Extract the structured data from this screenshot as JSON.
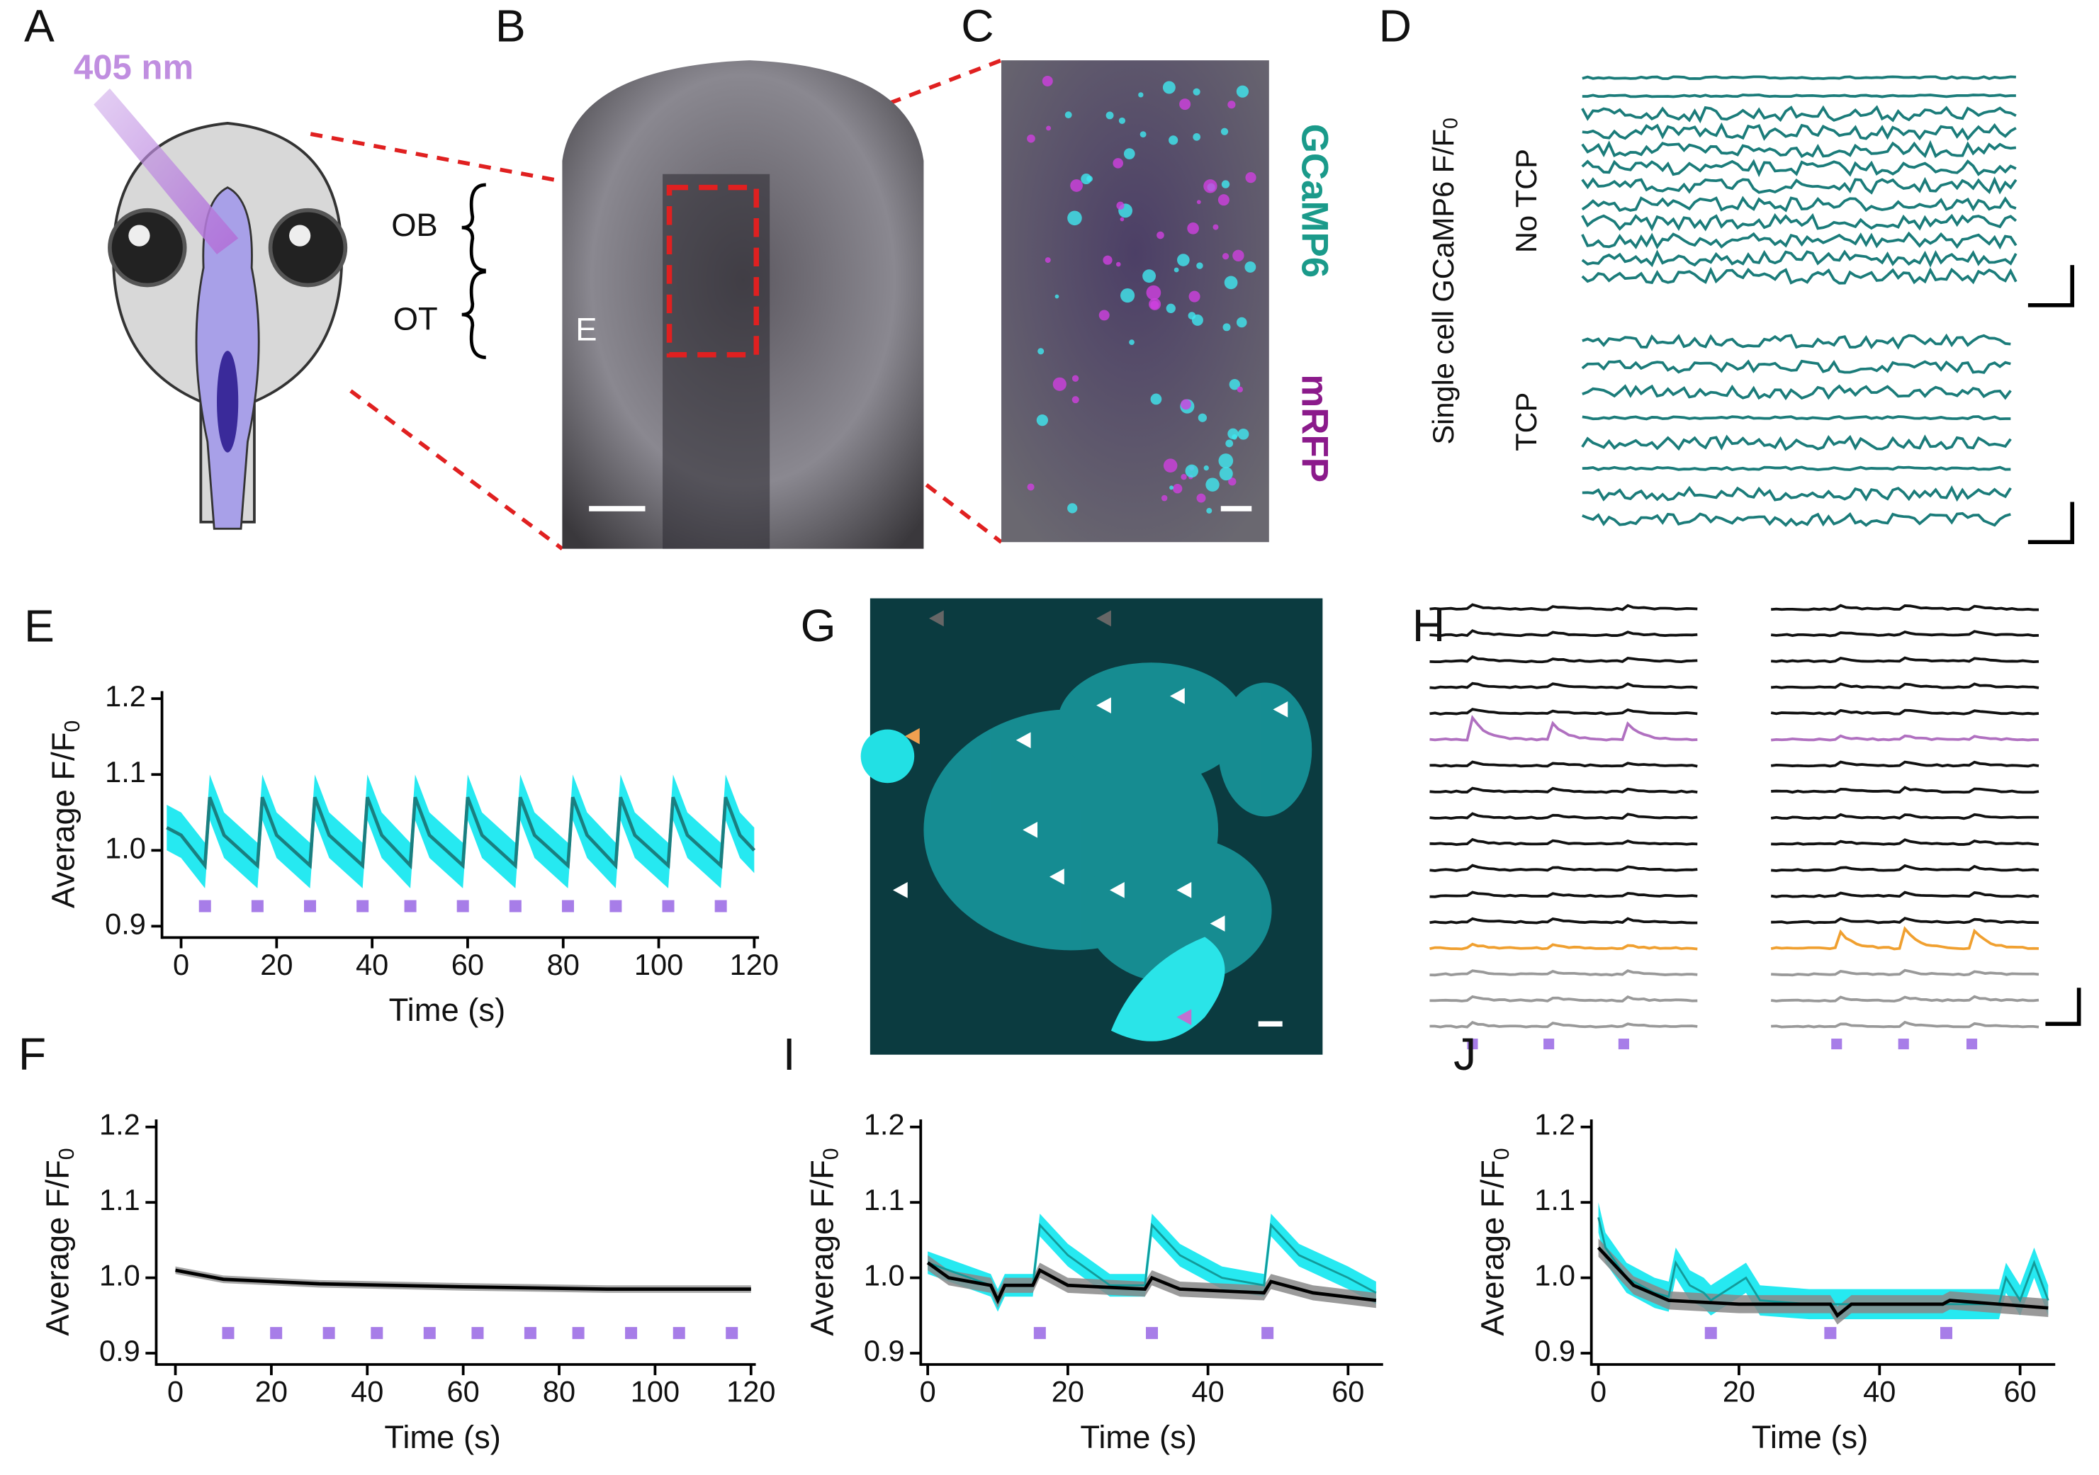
{
  "texts": {
    "panel_labels": [
      "A",
      "B",
      "C",
      "D",
      "G",
      "H"
    ],
    "a_wavelength": "405 nm",
    "b_labels": [
      "OB",
      "OT",
      "E"
    ],
    "c_labels": [
      "GCaMP6",
      "mRFP"
    ],
    "d_ylabel": "Single cell GCaMP6 F/F",
    "d_ylabel_sub": "0",
    "d_groups": [
      "No TCP",
      "TCP"
    ]
  },
  "chart_data": [
    {
      "type": "line",
      "panel": "E",
      "xlabel": "Time (s)",
      "ylabel": "Average F/F",
      "ylabel_sub": "0",
      "xlim": [
        -4,
        121
      ],
      "ylim": [
        0.885,
        1.21
      ],
      "xticks": [
        0,
        20,
        40,
        60,
        80,
        100,
        120
      ],
      "yticks": [
        0.9,
        {
          "value": 1,
          "label": "1.0"
        },
        1.1,
        1.2
      ],
      "stimuli": [
        5,
        16,
        27,
        38,
        48,
        59,
        70,
        81,
        91,
        102,
        113
      ],
      "stimulus_color": "#a77de8",
      "series": [
        {
          "color": "#1a7f80",
          "band_color": "#00e5ee",
          "error": 0.03,
          "x": [
            -3,
            0,
            5,
            6,
            9,
            16,
            17,
            20,
            27,
            28,
            31,
            38,
            39,
            42,
            48,
            49,
            52,
            59,
            60,
            63,
            70,
            71,
            74,
            81,
            82,
            85,
            91,
            92,
            95,
            102,
            103,
            106,
            113,
            114,
            117,
            120
          ],
          "values": [
            1.03,
            1.02,
            0.98,
            1.07,
            1.02,
            0.98,
            1.07,
            1.02,
            0.98,
            1.07,
            1.02,
            0.98,
            1.07,
            1.02,
            0.98,
            1.07,
            1.02,
            0.98,
            1.07,
            1.02,
            0.98,
            1.07,
            1.02,
            0.98,
            1.07,
            1.02,
            0.98,
            1.07,
            1.02,
            0.98,
            1.07,
            1.02,
            0.98,
            1.07,
            1.02,
            1.0
          ]
        }
      ]
    },
    {
      "type": "line",
      "panel": "F",
      "xlabel": "Time (s)",
      "ylabel": "Average F/F",
      "ylabel_sub": "0",
      "xlim": [
        -4,
        121
      ],
      "ylim": [
        0.885,
        1.21
      ],
      "xticks": [
        0,
        20,
        40,
        60,
        80,
        100,
        120
      ],
      "yticks": [
        0.9,
        {
          "value": 1,
          "label": "1.0"
        },
        1.1,
        1.2
      ],
      "stimuli": [
        11,
        21,
        32,
        42,
        53,
        63,
        74,
        84,
        95,
        105,
        116
      ],
      "stimulus_color": "#a77de8",
      "series": [
        {
          "color": "#000000",
          "band_color": "#999999",
          "error": 0.005,
          "x": [
            0,
            10,
            30,
            60,
            90,
            120
          ],
          "values": [
            1.01,
            0.998,
            0.992,
            0.988,
            0.985,
            0.985
          ]
        }
      ]
    },
    {
      "type": "line",
      "panel": "I",
      "xlabel": "Time (s)",
      "ylabel": "Average F/F",
      "ylabel_sub": "0",
      "xlim": [
        -1,
        65
      ],
      "ylim": [
        0.885,
        1.21
      ],
      "xticks": [
        0,
        20,
        40,
        60
      ],
      "yticks": [
        0.9,
        {
          "value": 1,
          "label": "1.0"
        },
        1.1,
        1.2
      ],
      "stimuli": [
        16,
        32,
        48.5
      ],
      "stimulus_color": "#a77de8",
      "series": [
        {
          "color": "#139a9a",
          "band_color": "#00e5ee",
          "error": 0.015,
          "x": [
            0,
            9,
            10,
            11,
            15,
            16,
            20,
            26,
            31,
            32,
            36,
            42,
            48,
            49,
            53,
            60,
            64
          ],
          "values": [
            1.02,
            0.99,
            0.97,
            0.99,
            0.99,
            1.07,
            1.03,
            0.99,
            0.99,
            1.07,
            1.03,
            1.0,
            0.99,
            1.07,
            1.03,
            1.0,
            0.98
          ]
        },
        {
          "color": "#000000",
          "band_color": "#888888",
          "error": 0.01,
          "x": [
            0,
            3,
            9,
            10,
            11,
            15,
            16,
            20,
            31,
            32,
            36,
            48,
            49,
            55,
            64
          ],
          "values": [
            1.02,
            1.0,
            0.99,
            0.97,
            0.99,
            0.99,
            1.01,
            0.99,
            0.985,
            1.0,
            0.985,
            0.98,
            0.995,
            0.98,
            0.97
          ]
        }
      ]
    },
    {
      "type": "line",
      "panel": "J",
      "xlabel": "Time (s)",
      "ylabel": "Average F/F",
      "ylabel_sub": "0",
      "xlim": [
        -1,
        65
      ],
      "ylim": [
        0.885,
        1.21
      ],
      "xticks": [
        0,
        20,
        40,
        60
      ],
      "yticks": [
        0.9,
        {
          "value": 1,
          "label": "1.0"
        },
        1.1,
        1.2
      ],
      "stimuli": [
        16,
        33,
        49.5
      ],
      "stimulus_color": "#a77de8",
      "series": [
        {
          "color": "#139a9a",
          "band_color": "#00e5ee",
          "error": 0.02,
          "x": [
            0,
            1,
            4,
            8,
            10,
            11,
            13,
            15,
            16,
            21,
            23,
            30,
            40,
            50,
            57,
            58,
            60,
            62,
            64
          ],
          "values": [
            1.08,
            1.04,
            1.0,
            0.98,
            0.975,
            1.02,
            0.99,
            0.98,
            0.97,
            1.0,
            0.97,
            0.965,
            0.965,
            0.965,
            0.965,
            1.0,
            0.97,
            1.02,
            0.97
          ]
        },
        {
          "color": "#000000",
          "band_color": "#888888",
          "error": 0.012,
          "x": [
            0,
            2,
            5,
            10,
            20,
            33,
            34,
            36,
            49,
            50,
            64
          ],
          "values": [
            1.04,
            1.02,
            0.99,
            0.97,
            0.965,
            0.965,
            0.95,
            0.965,
            0.965,
            0.97,
            0.96
          ]
        }
      ]
    }
  ]
}
